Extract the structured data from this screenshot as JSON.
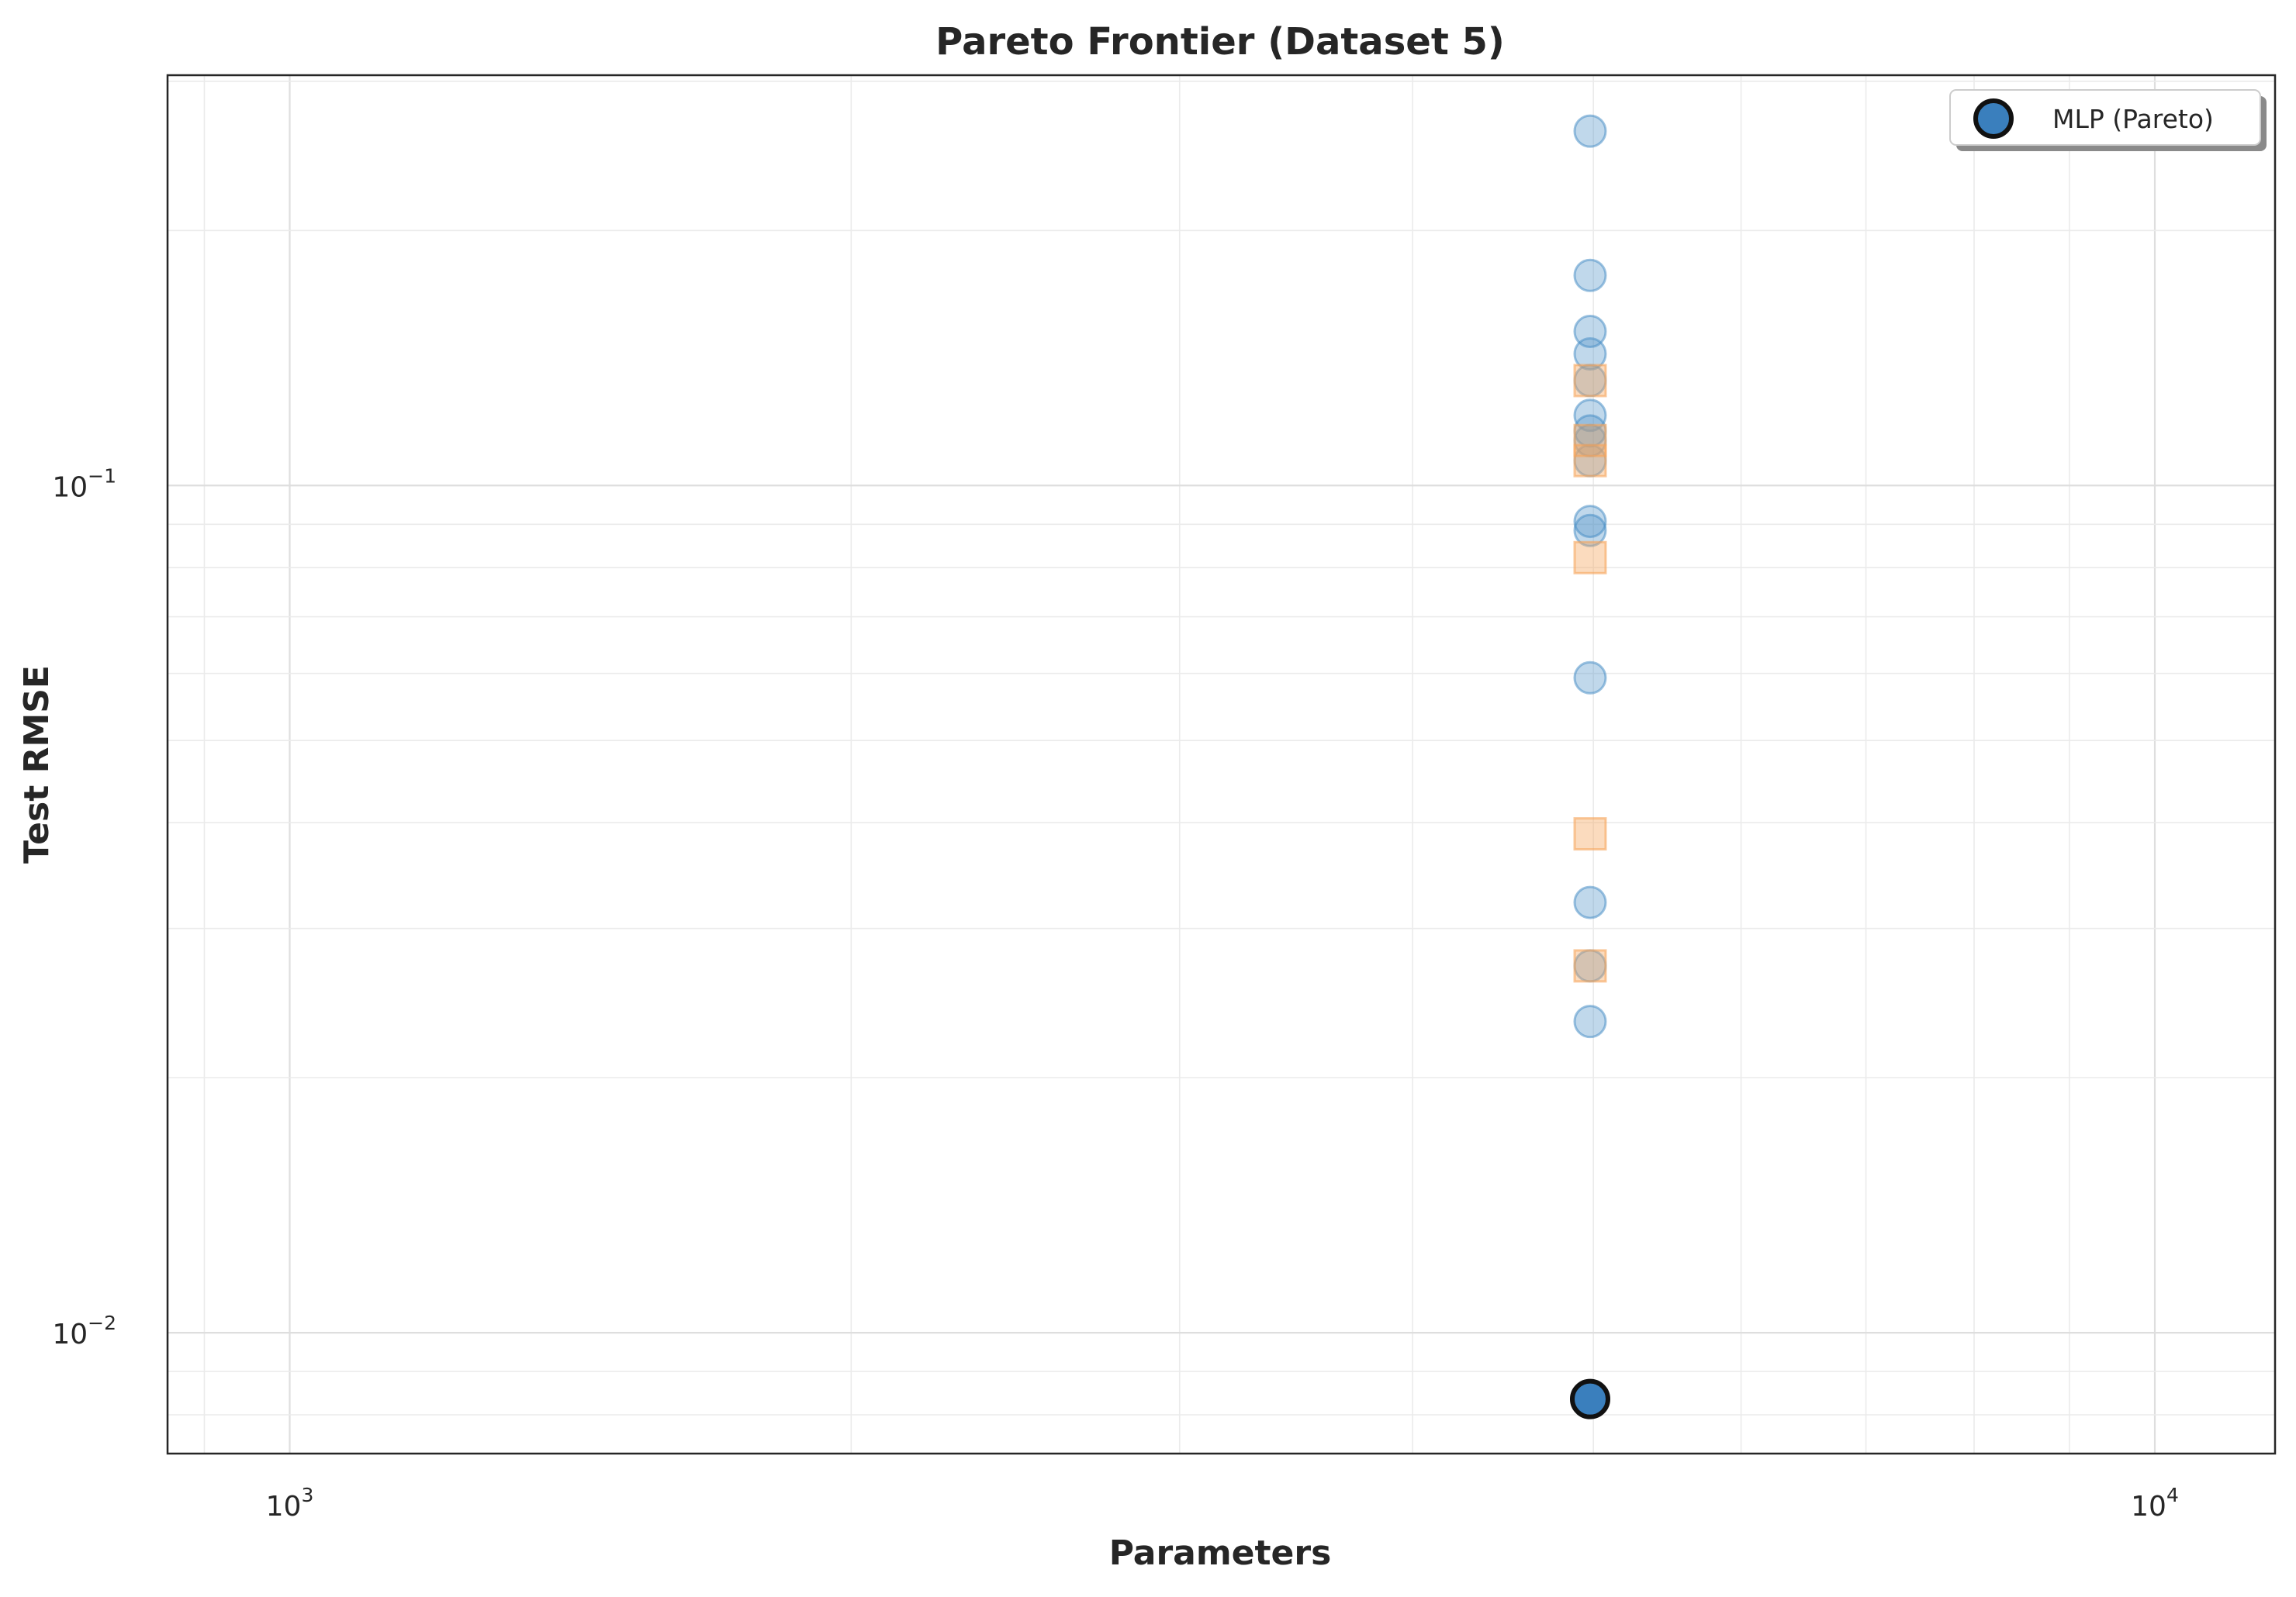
{
  "chart_data": {
    "type": "scatter",
    "title": "Pareto Frontier (Dataset 5)",
    "xlabel": "Parameters",
    "ylabel": "Test RMSE",
    "xscale": "log",
    "yscale": "log",
    "xlim": [
      860,
      11600
    ],
    "ylim": [
      0.0072,
      0.305
    ],
    "grid": true,
    "x_ticks": [
      {
        "value": 1000,
        "base": "10",
        "exp": "3"
      },
      {
        "value": 10000,
        "base": "10",
        "exp": "4"
      }
    ],
    "y_ticks": [
      {
        "value": 0.01,
        "base": "10",
        "exp": "−2"
      },
      {
        "value": 0.1,
        "base": "10",
        "exp": "−1"
      }
    ],
    "legend": {
      "placement": "upper right",
      "entries": [
        "MLP (Pareto)"
      ]
    },
    "colors": {
      "circle": "#4a8fc7",
      "square": "#f6a55c",
      "pareto_fill": "#3a7fbd",
      "pareto_edge": "#111111"
    },
    "series": [
      {
        "marker": "circle",
        "points": [
          {
            "x": 4980,
            "y": 0.262
          },
          {
            "x": 4980,
            "y": 0.177
          },
          {
            "x": 4980,
            "y": 0.152
          },
          {
            "x": 4980,
            "y": 0.143
          },
          {
            "x": 4980,
            "y": 0.133
          },
          {
            "x": 4980,
            "y": 0.121
          },
          {
            "x": 4980,
            "y": 0.116
          },
          {
            "x": 4980,
            "y": 0.113
          },
          {
            "x": 4980,
            "y": 0.107
          },
          {
            "x": 4980,
            "y": 0.0907
          },
          {
            "x": 4980,
            "y": 0.0885
          },
          {
            "x": 4980,
            "y": 0.0593
          },
          {
            "x": 4980,
            "y": 0.0322
          },
          {
            "x": 4980,
            "y": 0.0271
          },
          {
            "x": 4980,
            "y": 0.0233
          }
        ]
      },
      {
        "marker": "square",
        "points": [
          {
            "x": 4980,
            "y": 0.133
          },
          {
            "x": 4980,
            "y": 0.113
          },
          {
            "x": 4980,
            "y": 0.107
          },
          {
            "x": 4980,
            "y": 0.0822
          },
          {
            "x": 4980,
            "y": 0.0388
          },
          {
            "x": 4980,
            "y": 0.0271
          }
        ]
      },
      {
        "name": "MLP (Pareto)",
        "marker": "circle",
        "pareto": true,
        "points": [
          {
            "x": 4980,
            "y": 0.00835
          }
        ]
      }
    ]
  }
}
